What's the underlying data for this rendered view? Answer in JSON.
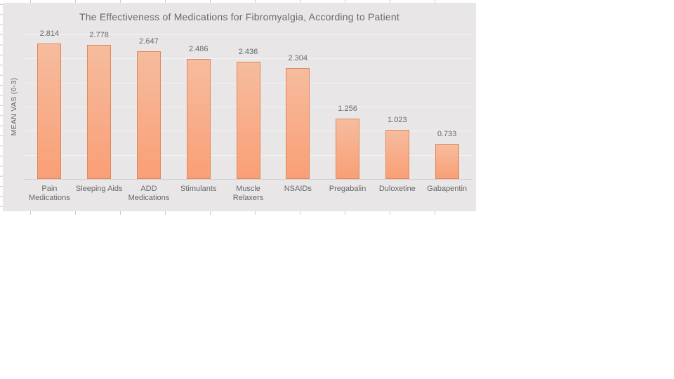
{
  "chart_data": {
    "type": "bar",
    "title": "The Effectiveness of Medications for Fibromyalgia, According to Patient",
    "xlabel": "",
    "ylabel": "MEAN VAS (0-3)",
    "categories": [
      "Pain Medications",
      "Sleeping Aids",
      "ADD Medications",
      "Stimulants",
      "Muscle Relaxers",
      "NSAIDs",
      "Pregabalin",
      "Duloxetine",
      "Gabapentin"
    ],
    "values": [
      2.814,
      2.778,
      2.647,
      2.486,
      2.436,
      2.304,
      1.256,
      1.023,
      0.733
    ],
    "value_labels": [
      "2.814",
      "2.778",
      "2.647",
      "2.486",
      "2.436",
      "2.304",
      "1.256",
      "1.023",
      "0.733"
    ],
    "ylim": [
      0,
      3
    ],
    "gridline_step": 0.5,
    "grid": true,
    "legend_position": "none",
    "data_labels": "above-bars",
    "y_tick_labels_shown": false,
    "colors": {
      "chart_background": "#e8e6e7",
      "page_background": "#ffffff",
      "bar_fill_top": "#f6bc9e",
      "bar_fill_bottom": "#f99f76",
      "bar_border": "#e0875a",
      "gridline": "#f4f3f3",
      "axis_line": "#cfcdce",
      "text": "#6a6a6a",
      "sheet_tick": "#c9c9c9"
    }
  }
}
